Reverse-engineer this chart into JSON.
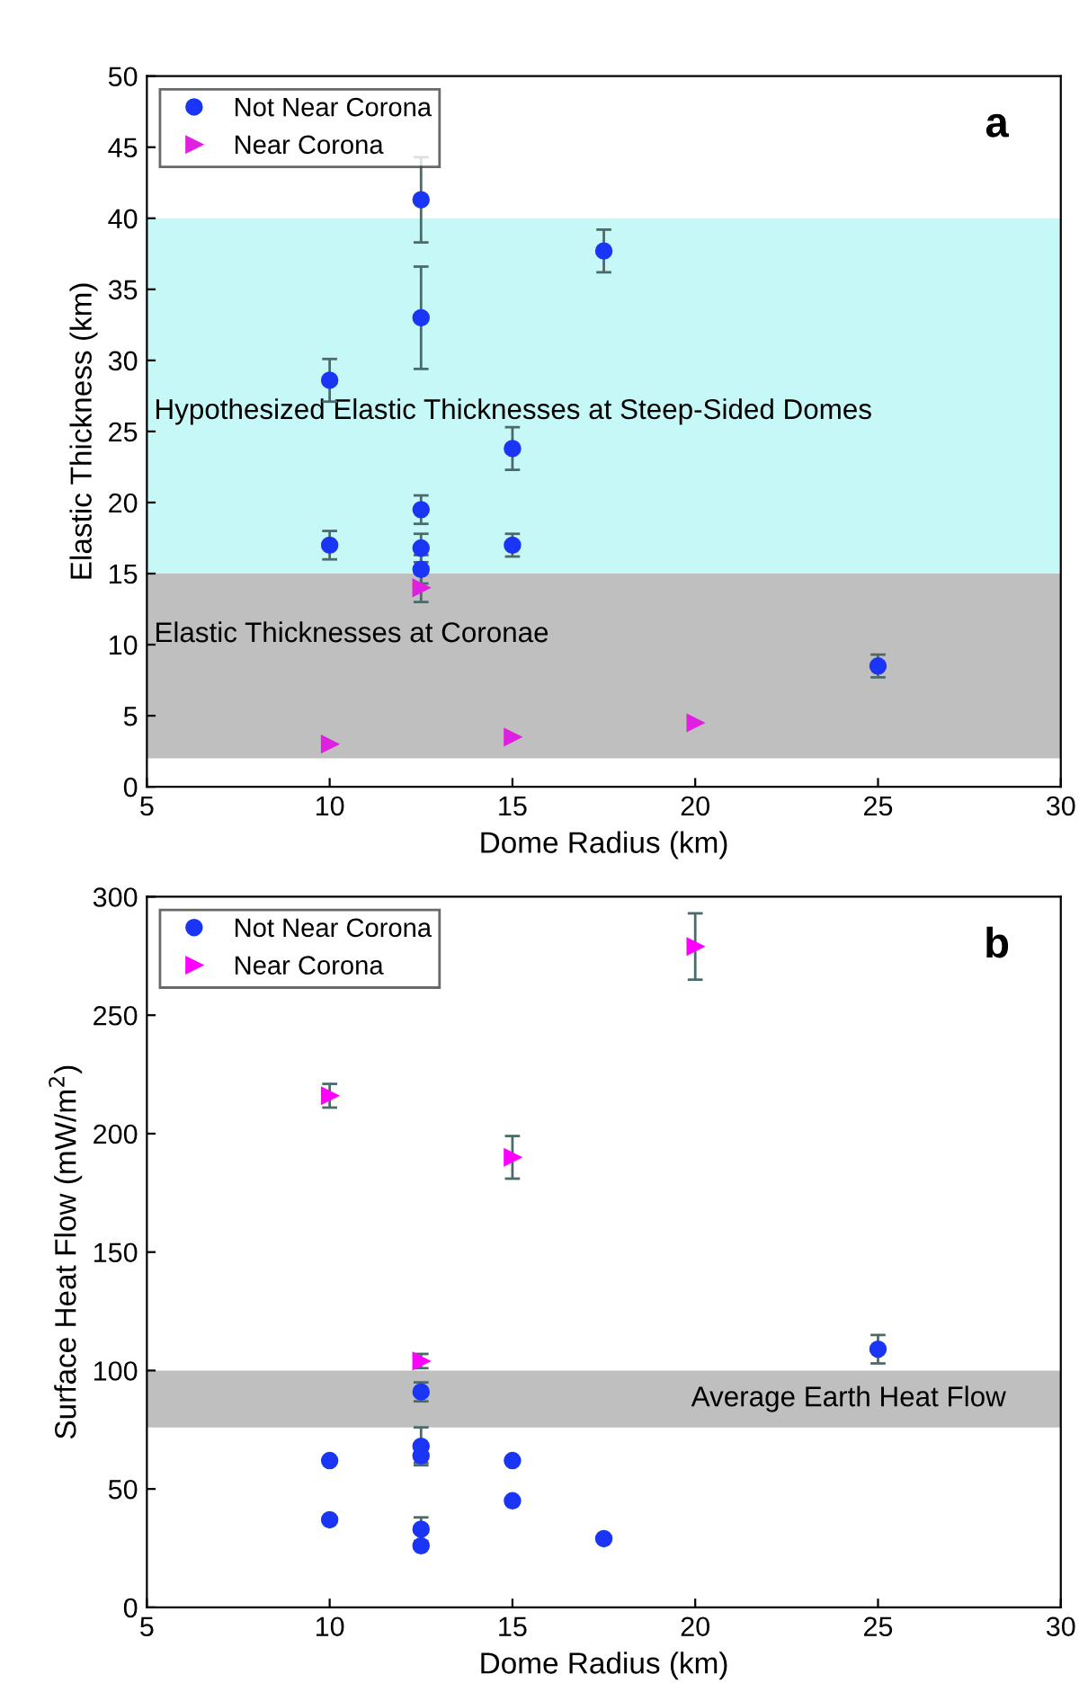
{
  "chart_data": [
    {
      "type": "scatter",
      "xlabel": "Dome Radius (km)",
      "ylabel": "Elastic Thickness (km)",
      "xlim": [
        5,
        30
      ],
      "xticks": [
        5,
        10,
        15,
        20,
        25,
        30
      ],
      "ylim": [
        0,
        50
      ],
      "yticks": [
        0,
        5,
        10,
        15,
        20,
        25,
        30,
        35,
        40,
        45,
        50
      ],
      "grid": false,
      "legend": "top left",
      "annotations": [
        "a"
      ],
      "bands": [
        {
          "axis": "y",
          "from": 15,
          "to": 40,
          "label": "Hypothesized Elastic Thicknesses at Steep-Sided Domes",
          "color": "#c6f8f8"
        },
        {
          "axis": "y",
          "from": 2,
          "to": 15,
          "label": "Elastic Thicknesses at Coronae",
          "color": "#bfbfbf"
        }
      ],
      "series": [
        {
          "name": "Not Near Corona",
          "color": "#1a35f5",
          "marker": "circle",
          "x": [
            10,
            10,
            12.5,
            12.5,
            12.5,
            12.5,
            12.5,
            15,
            15,
            17.5,
            25
          ],
          "values": [
            28.6,
            17,
            41.3,
            33,
            19.5,
            16.8,
            15.3,
            23.8,
            17,
            37.7,
            8.5
          ],
          "errors": [
            1.5,
            1,
            3,
            3.6,
            1,
            1,
            1,
            1.5,
            0.8,
            1.5,
            0.8
          ]
        },
        {
          "name": "Near Corona",
          "color": "#e020e0",
          "marker": "triangle",
          "x": [
            10,
            12.5,
            15,
            20
          ],
          "values": [
            3,
            14,
            3.5,
            4.5
          ],
          "errors": [
            null,
            1,
            null,
            null
          ]
        }
      ]
    },
    {
      "type": "scatter",
      "xlabel": "Dome Radius (km)",
      "ylabel": "Surface Heat Flow (mW/m$^{2}$)",
      "xlim": [
        5,
        30
      ],
      "xticks": [
        5,
        10,
        15,
        20,
        25,
        30
      ],
      "ylim": [
        0,
        300
      ],
      "yticks": [
        0,
        50,
        100,
        150,
        200,
        250,
        300
      ],
      "grid": false,
      "legend": "top left",
      "annotations": [
        "b"
      ],
      "bands": [
        {
          "axis": "y",
          "from": 76,
          "to": 100,
          "label": "Average Earth Heat Flow",
          "color": "#bfbfbf"
        }
      ],
      "series": [
        {
          "name": "Not Near Corona",
          "color": "#1a35f5",
          "marker": "circle",
          "x": [
            10,
            10,
            12.5,
            12.5,
            12.5,
            12.5,
            12.5,
            15,
            15,
            17.5,
            25
          ],
          "values": [
            62,
            37,
            91,
            68,
            64,
            33,
            26,
            62,
            45,
            29,
            109
          ],
          "errors": [
            null,
            null,
            4,
            8,
            3,
            5,
            null,
            null,
            null,
            null,
            6
          ]
        },
        {
          "name": "Near Corona",
          "color": "#ff00ff",
          "marker": "triangle",
          "x": [
            10,
            12.5,
            15,
            20
          ],
          "values": [
            216,
            104,
            190,
            279
          ],
          "errors": [
            5,
            3,
            9,
            14
          ]
        }
      ]
    }
  ]
}
